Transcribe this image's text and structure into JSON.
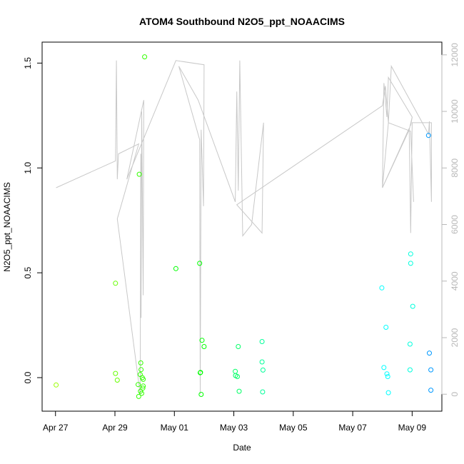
{
  "chart_data": {
    "type": "scatter",
    "title": "ATOM4 Southbound N2O5_ppt_NOAACIMS",
    "xlabel": "Date",
    "ylabel": "N2O5_ppt_NOAACIMS",
    "x_unit": "days since Apr 27",
    "xlim": [
      -0.45,
      13.0
    ],
    "ylim": [
      -0.16,
      1.6
    ],
    "x_ticks": [
      {
        "value": 0,
        "label": "Apr 27"
      },
      {
        "value": 2,
        "label": "Apr 29"
      },
      {
        "value": 4,
        "label": "May 01"
      },
      {
        "value": 6,
        "label": "May 03"
      },
      {
        "value": 8,
        "label": "May 05"
      },
      {
        "value": 10,
        "label": "May 07"
      },
      {
        "value": 12,
        "label": "May 09"
      }
    ],
    "y_ticks": [
      {
        "value": 0.0,
        "label": "0.0"
      },
      {
        "value": 0.5,
        "label": "0.5"
      },
      {
        "value": 1.0,
        "label": "1.0"
      },
      {
        "value": 1.5,
        "label": "1.5"
      }
    ],
    "y2_label": "",
    "y2lim": [
      -600,
      12450
    ],
    "y2_ticks": [
      {
        "value": 0,
        "label": "0"
      },
      {
        "value": 2000,
        "label": "2000"
      },
      {
        "value": 4000,
        "label": "4000"
      },
      {
        "value": 6000,
        "label": "6000"
      },
      {
        "value": 8000,
        "label": "8000"
      },
      {
        "value": 10000,
        "label": "10000"
      },
      {
        "value": 12000,
        "label": "12000"
      }
    ],
    "grid": false,
    "legend": "none",
    "series": [
      {
        "kind": "points",
        "marker": "open-circle",
        "points": [
          {
            "x": 0.02,
            "y": -0.035,
            "color": "#99ff00"
          },
          {
            "x": 2.02,
            "y": 0.45,
            "color": "#66ff00"
          },
          {
            "x": 2.02,
            "y": 0.02,
            "color": "#66ff00"
          },
          {
            "x": 2.08,
            "y": -0.012,
            "color": "#66ff00"
          },
          {
            "x": 2.82,
            "y": 0.97,
            "color": "#33ff00"
          },
          {
            "x": 2.78,
            "y": -0.033,
            "color": "#33ff00"
          },
          {
            "x": 2.8,
            "y": -0.09,
            "color": "#33ff00"
          },
          {
            "x": 2.85,
            "y": 0.015,
            "color": "#33ff00"
          },
          {
            "x": 2.86,
            "y": -0.065,
            "color": "#33ff00"
          },
          {
            "x": 2.87,
            "y": 0.07,
            "color": "#33ff00"
          },
          {
            "x": 2.88,
            "y": 0.038,
            "color": "#33ff00"
          },
          {
            "x": 2.9,
            "y": -0.075,
            "color": "#33ff00"
          },
          {
            "x": 2.92,
            "y": 0.0,
            "color": "#33ff00"
          },
          {
            "x": 2.94,
            "y": -0.05,
            "color": "#33ff00"
          },
          {
            "x": 2.95,
            "y": -0.04,
            "color": "#33ff00"
          },
          {
            "x": 2.95,
            "y": -0.008,
            "color": "#33ff00"
          },
          {
            "x": 3.0,
            "y": 1.53,
            "color": "#33ff00"
          },
          {
            "x": 4.05,
            "y": 0.52,
            "color": "#00ff00"
          },
          {
            "x": 4.85,
            "y": 0.545,
            "color": "#00ff00"
          },
          {
            "x": 4.87,
            "y": 0.023,
            "color": "#00ff00"
          },
          {
            "x": 4.88,
            "y": 0.025,
            "color": "#00ff00"
          },
          {
            "x": 4.9,
            "y": -0.08,
            "color": "#00ff00"
          },
          {
            "x": 4.93,
            "y": 0.178,
            "color": "#00ff00"
          },
          {
            "x": 5.0,
            "y": 0.148,
            "color": "#00ff00"
          },
          {
            "x": 6.05,
            "y": 0.03,
            "color": "#00ff66"
          },
          {
            "x": 6.06,
            "y": 0.01,
            "color": "#00ff66"
          },
          {
            "x": 6.12,
            "y": 0.005,
            "color": "#00ff66"
          },
          {
            "x": 6.15,
            "y": 0.148,
            "color": "#00ff66"
          },
          {
            "x": 6.18,
            "y": -0.065,
            "color": "#00ff66"
          },
          {
            "x": 6.95,
            "y": 0.172,
            "color": "#00ff99"
          },
          {
            "x": 6.95,
            "y": 0.075,
            "color": "#00ff99"
          },
          {
            "x": 6.97,
            "y": -0.068,
            "color": "#00ff99"
          },
          {
            "x": 6.98,
            "y": 0.036,
            "color": "#00ff99"
          },
          {
            "x": 10.98,
            "y": 0.428,
            "color": "#00ffff"
          },
          {
            "x": 11.05,
            "y": 0.048,
            "color": "#00ffff"
          },
          {
            "x": 11.12,
            "y": 0.24,
            "color": "#00ffff"
          },
          {
            "x": 11.15,
            "y": 0.018,
            "color": "#00ffff"
          },
          {
            "x": 11.18,
            "y": 0.005,
            "color": "#00ffff"
          },
          {
            "x": 11.2,
            "y": -0.072,
            "color": "#00ffff"
          },
          {
            "x": 11.95,
            "y": 0.59,
            "color": "#00ffdd"
          },
          {
            "x": 11.95,
            "y": 0.545,
            "color": "#00ffdd"
          },
          {
            "x": 11.93,
            "y": 0.16,
            "color": "#00ffdd"
          },
          {
            "x": 11.93,
            "y": 0.037,
            "color": "#00ffdd"
          },
          {
            "x": 12.02,
            "y": 0.34,
            "color": "#00ffdd"
          },
          {
            "x": 12.55,
            "y": 1.155,
            "color": "#0099ff"
          },
          {
            "x": 12.58,
            "y": 0.117,
            "color": "#0099ff"
          },
          {
            "x": 12.63,
            "y": 0.037,
            "color": "#0099ff"
          },
          {
            "x": 12.63,
            "y": -0.06,
            "color": "#0099ff"
          }
        ]
      },
      {
        "kind": "line",
        "axis": "right",
        "color": "#c8c8c8",
        "points": [
          [
            0.02,
            7300
          ],
          [
            2.02,
            8250
          ],
          [
            2.05,
            11800
          ],
          [
            2.08,
            7600
          ],
          [
            2.12,
            8500
          ],
          [
            2.8,
            8850
          ],
          [
            2.08,
            6200
          ],
          [
            2.85,
            0
          ],
          [
            2.87,
            8500
          ],
          [
            2.88,
            2700
          ],
          [
            2.9,
            10000
          ],
          [
            2.95,
            3500
          ],
          [
            2.97,
            10400
          ],
          [
            2.4,
            7600
          ],
          [
            4.05,
            11800
          ],
          [
            5.0,
            11650
          ],
          [
            4.98,
            6650
          ],
          [
            4.9,
            9350
          ],
          [
            4.87,
            0
          ],
          [
            4.85,
            9000
          ],
          [
            4.15,
            11600
          ],
          [
            4.8,
            10400
          ],
          [
            6.05,
            6800
          ],
          [
            6.1,
            10700
          ],
          [
            6.15,
            7200
          ],
          [
            6.2,
            11800
          ],
          [
            6.3,
            5600
          ],
          [
            6.6,
            6000
          ],
          [
            7.0,
            9600
          ],
          [
            6.95,
            5700
          ],
          [
            6.1,
            6700
          ],
          [
            11.0,
            10200
          ],
          [
            11.1,
            10900
          ],
          [
            11.2,
            9600
          ],
          [
            11.3,
            11600
          ],
          [
            12.55,
            9200
          ],
          [
            12.58,
            9650
          ],
          [
            12.65,
            6800
          ],
          [
            12.65,
            9600
          ],
          [
            12.0,
            9600
          ],
          [
            11.95,
            5700
          ],
          [
            11.9,
            9400
          ],
          [
            11.0,
            7300
          ],
          [
            11.05,
            11000
          ],
          [
            11.15,
            9800
          ],
          [
            11.2,
            11200
          ],
          [
            12.0,
            9800
          ],
          [
            12.0,
            9800
          ],
          [
            11.95,
            9500
          ],
          [
            11.95,
            9500
          ],
          [
            12.0,
            9800
          ],
          [
            12.0,
            9800
          ],
          [
            12.0,
            9800
          ],
          [
            11.9,
            9350
          ],
          [
            11.0,
            7300
          ],
          [
            11.2,
            9600
          ],
          [
            11.95,
            9300
          ],
          [
            12.05,
            6800
          ]
        ]
      }
    ]
  }
}
